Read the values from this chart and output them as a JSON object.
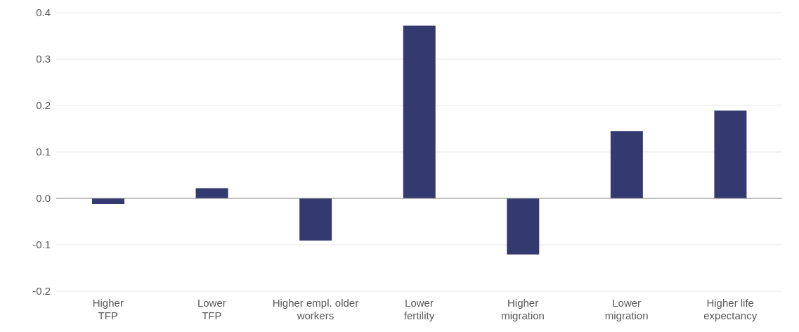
{
  "chart_data": {
    "type": "bar",
    "categories": [
      "Higher\nTFP",
      "Lower\nTFP",
      "Higher empl. older\nworkers",
      "Lower\nfertility",
      "Higher\nmigration",
      "Lower\nmigration",
      "Higher life\nexpectancy"
    ],
    "values": [
      -0.012,
      0.022,
      -0.091,
      0.372,
      -0.121,
      0.145,
      0.189
    ],
    "color": "#343a70",
    "ylim": [
      -0.2,
      0.4
    ],
    "yticks": [
      {
        "value": -0.2,
        "label": "-0.2"
      },
      {
        "value": -0.1,
        "label": "-0.1"
      },
      {
        "value": 0,
        "label": "0.0"
      },
      {
        "value": 0.1,
        "label": "0.1"
      },
      {
        "value": 0.2,
        "label": "0.2"
      },
      {
        "value": 0.3,
        "label": "0.3"
      },
      {
        "value": 0.4,
        "label": "0.4"
      }
    ],
    "grid": "y",
    "ref_lines": [
      {
        "axis": "y",
        "value": 0,
        "color": "#8c8c8c"
      }
    ]
  }
}
